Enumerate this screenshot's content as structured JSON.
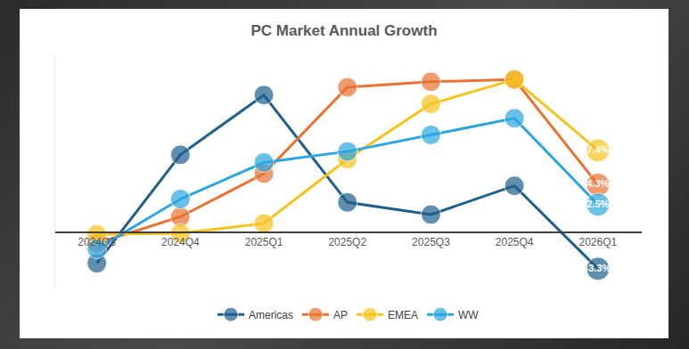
{
  "chart_data": {
    "type": "line",
    "title": "PC Market Annual Growth",
    "categories": [
      "2024Q3",
      "2024Q4",
      "2025Q1",
      "2025Q2",
      "2025Q3",
      "2025Q4",
      "2026Q1"
    ],
    "series": [
      {
        "name": "Americas",
        "color": "#1f5f8b",
        "values": [
          -2.8,
          7.0,
          12.4,
          2.7,
          1.6,
          4.2,
          -3.3
        ],
        "value_labels": [
          null,
          null,
          null,
          null,
          null,
          null,
          "-3.3%"
        ]
      },
      {
        "name": "AP",
        "color": "#e97132",
        "values": [
          -1.0,
          1.4,
          5.3,
          13.1,
          13.6,
          13.8,
          4.3
        ],
        "value_labels": [
          null,
          null,
          null,
          null,
          null,
          null,
          "4.3%"
        ]
      },
      {
        "name": "EMEA",
        "color": "#f7c21b",
        "values": [
          -0.2,
          -0.1,
          0.8,
          6.6,
          11.6,
          13.8,
          7.4
        ],
        "value_labels": [
          null,
          null,
          null,
          null,
          null,
          null,
          "7.4%"
        ]
      },
      {
        "name": "WW",
        "color": "#2aa7df",
        "values": [
          -1.5,
          3.0,
          6.3,
          7.3,
          8.8,
          10.3,
          2.5
        ],
        "value_labels": [
          null,
          null,
          null,
          null,
          null,
          null,
          "2.5%"
        ]
      }
    ],
    "ylim": [
      -5,
      16
    ],
    "yticks": [
      0
    ],
    "tick_labels": "x",
    "grid": false,
    "legend": "bottom",
    "marker": "circle"
  }
}
